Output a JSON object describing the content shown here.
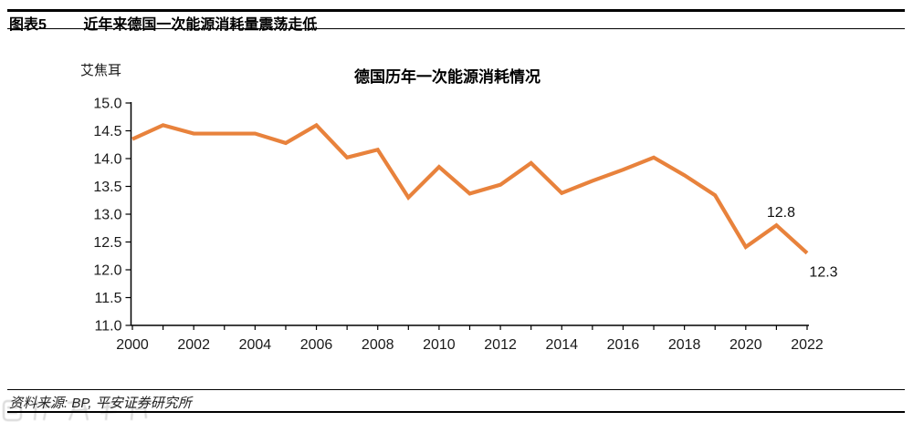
{
  "header": {
    "tag": "图表5",
    "title": "近年来德国一次能源消耗量震荡走低"
  },
  "chart_data": {
    "type": "line",
    "title": "德国历年一次能源消耗情况",
    "unit_label": "艾焦耳",
    "x": [
      2000,
      2001,
      2002,
      2003,
      2004,
      2005,
      2006,
      2007,
      2008,
      2009,
      2010,
      2011,
      2012,
      2013,
      2014,
      2015,
      2016,
      2017,
      2018,
      2019,
      2020,
      2021,
      2022
    ],
    "values": [
      14.35,
      14.6,
      14.45,
      14.45,
      14.45,
      14.28,
      14.6,
      14.02,
      14.16,
      13.3,
      13.85,
      13.37,
      13.53,
      13.92,
      13.38,
      13.6,
      13.8,
      14.02,
      13.7,
      13.34,
      12.41,
      12.8,
      12.3
    ],
    "ylim": [
      11.0,
      15.0
    ],
    "ytick_step": 0.5,
    "xlabel_every": 2,
    "line_color": "#E8823C",
    "axis_color": "#000000",
    "grid": false,
    "legend": "none",
    "point_labels": [
      {
        "year": 2021,
        "value": 12.8,
        "text": "12.8",
        "position": "above"
      },
      {
        "year": 2022,
        "value": 12.3,
        "text": "12.3",
        "position": "below-right"
      }
    ]
  },
  "footer": {
    "source": "资料来源: BP, 平安证券研究所"
  }
}
